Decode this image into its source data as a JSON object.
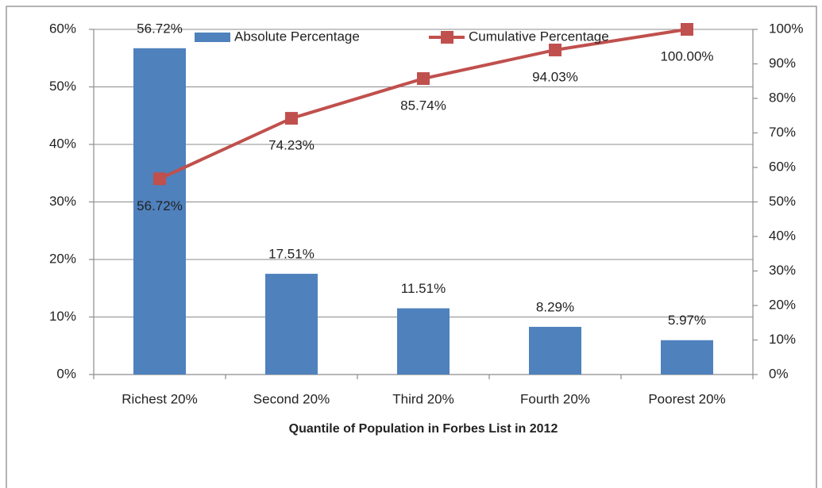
{
  "chart_data": {
    "type": "combo",
    "x_label": "Quantile of Population in Forbes List in 2012",
    "categories": [
      "Richest 20%",
      "Second 20%",
      "Third 20%",
      "Fourth 20%",
      "Poorest 20%"
    ],
    "series": [
      {
        "name": "Absolute Percentage",
        "type": "bar",
        "color": "#4f81bd",
        "axis": "y",
        "values": [
          56.72,
          17.51,
          11.51,
          8.29,
          5.97
        ],
        "value_labels": [
          "56.72%",
          "17.51%",
          "11.51%",
          "8.29%",
          "5.97%"
        ]
      },
      {
        "name": "Cumulative Percentage",
        "type": "line",
        "color": "#c0504d",
        "axis": "y2",
        "values": [
          56.72,
          74.23,
          85.74,
          94.03,
          100
        ],
        "value_labels": [
          "56.72%",
          "74.23%",
          "85.74%",
          "94.03%",
          "100.00%"
        ]
      }
    ],
    "ylim": [
      0,
      60
    ],
    "yticks": [
      {
        "value": 0,
        "label": "0%"
      },
      {
        "value": 10,
        "label": "10%"
      },
      {
        "value": 20,
        "label": "20%"
      },
      {
        "value": 30,
        "label": "30%"
      },
      {
        "value": 40,
        "label": "40%"
      },
      {
        "value": 50,
        "label": "50%"
      },
      {
        "value": 60,
        "label": "60%"
      }
    ],
    "y2lim": [
      0,
      100
    ],
    "y2ticks": [
      {
        "value": 0,
        "label": "0%"
      },
      {
        "value": 10,
        "label": "10%"
      },
      {
        "value": 20,
        "label": "20%"
      },
      {
        "value": 30,
        "label": "30%"
      },
      {
        "value": 40,
        "label": "40%"
      },
      {
        "value": 50,
        "label": "50%"
      },
      {
        "value": 60,
        "label": "60%"
      },
      {
        "value": 70,
        "label": "70%"
      },
      {
        "value": 80,
        "label": "80%"
      },
      {
        "value": 90,
        "label": "90%"
      },
      {
        "value": 100,
        "label": "100%"
      }
    ],
    "grid": true,
    "legend": "top"
  }
}
